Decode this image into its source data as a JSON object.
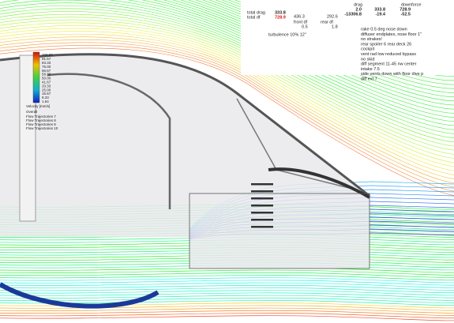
{
  "results_table": {
    "headers": [
      "drag",
      "downforce"
    ],
    "rows": [
      [
        "2.0",
        "333.8",
        "728.9"
      ],
      [
        "-13306.8",
        "-19.4",
        "-52.5"
      ]
    ]
  },
  "summary": {
    "total_drag_label": "total drag",
    "total_drag": "333.8",
    "total_df_label": "total df",
    "total_df": "728.9",
    "front_df": "436.3",
    "rear_df": "292.6",
    "front_df_label": "front df",
    "rear_df_label": "rear df",
    "front_ratio": "0.5",
    "rear_ratio": "1.8",
    "turbulence": "turbulence 10% 12\""
  },
  "notes": [
    "rake 0.5 deg nose down",
    "diffuser endplates, nose floor 1\"",
    "no strakes!",
    "rear spoiler 6 rear deck 26",
    "cockpit",
    "vent rad low reduced bypass",
    "no skid",
    "diff segment 11-45 nw center",
    "intake 7.5",
    "side vents down with floor dive p",
    "diff ext 7"
  ],
  "legend": {
    "scale": [
      "100.00",
      "91.67",
      "83.33",
      "75.00",
      "66.67",
      "58.33",
      "50.00",
      "41.67",
      "33.33",
      "25.00",
      "16.67",
      "8.33",
      "1.64"
    ],
    "unit": "Velocity [mm/s]",
    "title": "Overall",
    "series": [
      "Flow Trajectories 7",
      "Flow Trajectories 8",
      "Flow Trajectories 9",
      "Flow Trajectories 10"
    ]
  }
}
